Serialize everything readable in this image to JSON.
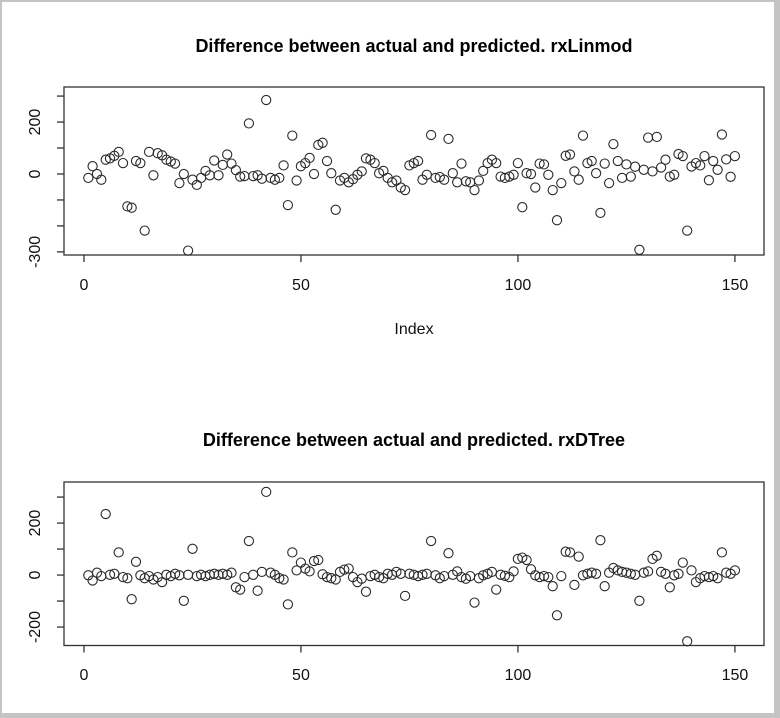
{
  "window": {
    "background_color": "#ffffff",
    "border_color": "#c4c4c4"
  },
  "chart_data": [
    {
      "type": "scatter",
      "title": "Difference between actual and predicted. rxLinmod",
      "xlabel": "Index",
      "ylabel": "",
      "marker": "open-circle",
      "grid": false,
      "legend": null,
      "x_start_index": 1,
      "xlim": [
        -4.6,
        156.7
      ],
      "ylim": [
        -312,
        335
      ],
      "x_ticks": [
        0,
        50,
        100,
        150
      ],
      "x_tick_labels": [
        "0",
        "50",
        "100",
        "150"
      ],
      "y_ticks": [
        -300,
        -200,
        -100,
        0,
        100,
        200,
        300
      ],
      "y_ticks_labeled": [
        200,
        0,
        -300
      ],
      "y_tick_labels": [
        "200",
        "0",
        "-300"
      ],
      "values": [
        -15,
        30,
        0,
        -22,
        55,
        60,
        70,
        85,
        42,
        -125,
        -130,
        50,
        42,
        -218,
        85,
        -5,
        80,
        72,
        55,
        48,
        40,
        -35,
        0,
        -295,
        -22,
        -42,
        -15,
        12,
        -5,
        52,
        -5,
        35,
        75,
        40,
        15,
        -10,
        -8,
        195,
        -8,
        -5,
        -18,
        285,
        -15,
        -22,
        -15,
        33,
        -120,
        148,
        -25,
        30,
        42,
        62,
        0,
        112,
        120,
        50,
        3,
        -138,
        -25,
        -15,
        -32,
        -20,
        -3,
        10,
        60,
        55,
        42,
        3,
        12,
        -15,
        -32,
        -25,
        -52,
        -62,
        33,
        42,
        50,
        -22,
        -3,
        150,
        -15,
        -12,
        -22,
        135,
        3,
        -32,
        40,
        -28,
        -32,
        -62,
        -25,
        12,
        42,
        55,
        42,
        -10,
        -15,
        -10,
        -3,
        42,
        -128,
        3,
        0,
        -52,
        40,
        37,
        -3,
        -62,
        -178,
        -35,
        70,
        75,
        10,
        -22,
        148,
        42,
        50,
        3,
        -150,
        40,
        -35,
        115,
        50,
        -15,
        37,
        -10,
        28,
        -292,
        16,
        140,
        10,
        143,
        25,
        55,
        -10,
        -3,
        77,
        69,
        -218,
        29,
        42,
        33,
        69,
        -24,
        50,
        16,
        152,
        56,
        -11,
        69
      ]
    },
    {
      "type": "scatter",
      "title": "Difference between actual and predicted. rxDTree",
      "xlabel": "",
      "ylabel": "",
      "marker": "open-circle",
      "grid": false,
      "legend": null,
      "x_start_index": 1,
      "xlim": [
        -4.6,
        156.7
      ],
      "ylim": [
        -271,
        358
      ],
      "x_ticks": [
        0,
        50,
        100,
        150
      ],
      "x_tick_labels": [
        "0",
        "50",
        "100",
        "150"
      ],
      "y_ticks": [
        -200,
        -100,
        0,
        100,
        200,
        300
      ],
      "y_ticks_labeled": [
        200,
        0,
        -200
      ],
      "y_tick_labels": [
        "200",
        "0",
        "-200"
      ],
      "values": [
        -1,
        -21,
        9,
        -4,
        235,
        1,
        5,
        87,
        -8,
        -12,
        -93,
        51,
        -1,
        -12,
        -4,
        -17,
        -8,
        -27,
        1,
        -4,
        5,
        -1,
        -99,
        1,
        101,
        -4,
        1,
        -4,
        1,
        5,
        1,
        5,
        1,
        9,
        -47,
        -56,
        -8,
        131,
        1,
        -60,
        12,
        320,
        9,
        1,
        -12,
        -17,
        -113,
        87,
        18,
        48,
        25,
        14,
        54,
        58,
        3,
        -8,
        -12,
        -17,
        12,
        21,
        25,
        -8,
        -27,
        -14,
        -64,
        -4,
        1,
        -8,
        -12,
        5,
        1,
        12,
        5,
        -80,
        5,
        1,
        -4,
        1,
        5,
        131,
        -1,
        -12,
        -4,
        84,
        1,
        14,
        -8,
        -14,
        -4,
        -106,
        -12,
        -1,
        5,
        12,
        -56,
        1,
        -3,
        -8,
        14,
        62,
        67,
        58,
        22,
        -1,
        -8,
        -4,
        -8,
        -43,
        -155,
        -4,
        90,
        87,
        -38,
        71,
        -1,
        5,
        9,
        5,
        134,
        -43,
        9,
        27,
        18,
        12,
        9,
        5,
        1,
        -99,
        9,
        14,
        62,
        74,
        12,
        5,
        -47,
        -1,
        5,
        48,
        -255,
        18,
        -27,
        -12,
        -4,
        -8,
        -4,
        -12,
        87,
        9,
        5,
        18
      ]
    }
  ]
}
